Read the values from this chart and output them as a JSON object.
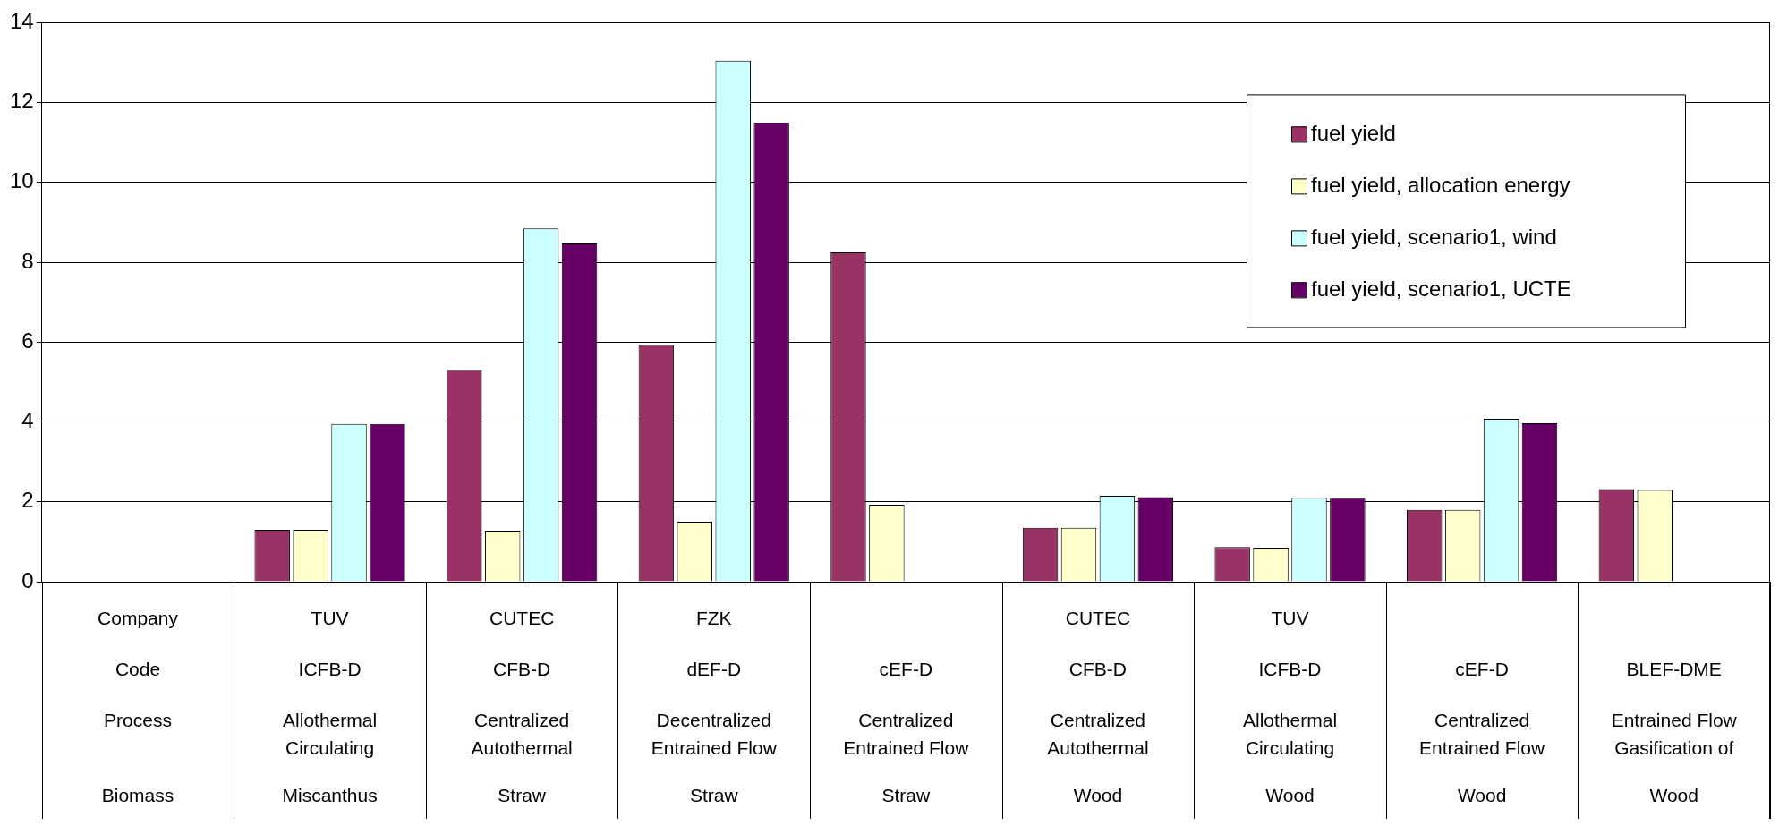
{
  "chart_data": {
    "type": "bar",
    "categories": [
      "Company\nCode\nProcess\n\nBiomass",
      "TUV\nICFB-D\nAllothermal\nCirculating\nMiscanthus",
      "CUTEC\nCFB-D\nCentralized\nAutothermal\nStraw",
      "FZK\ndEF-D\nDecentralized\nEntrained Flow\nStraw",
      "\ncEF-D\nCentralized\nEntrained Flow\nStraw",
      "CUTEC\nCFB-D\nCentralized\nAutothermal\nWood",
      "TUV\nICFB-D\nAllothermal\nCirculating\nWood",
      "\ncEF-D\nCentralized\nEntrained Flow\nWood",
      "\nBLEF-DME\nEntrained Flow\nGasification of\nWood"
    ],
    "series": [
      {
        "name": "fuel yield",
        "color": "#993366",
        "values": [
          null,
          1.3,
          5.3,
          5.93,
          8.25,
          1.35,
          0.87,
          1.8,
          2.32
        ]
      },
      {
        "name": "fuel yield, allocation energy",
        "color": "#ffffcc",
        "values": [
          null,
          1.3,
          1.28,
          1.5,
          1.93,
          1.35,
          0.85,
          1.8,
          2.3
        ]
      },
      {
        "name": "fuel yield, scenario1, wind",
        "color": "#ccffff",
        "values": [
          null,
          3.95,
          8.85,
          13.05,
          null,
          2.15,
          2.1,
          4.08,
          null
        ]
      },
      {
        "name": "fuel yield, scenario1, UCTE",
        "color": "#660066",
        "values": [
          null,
          3.95,
          8.47,
          11.5,
          null,
          2.12,
          2.1,
          3.97,
          null
        ]
      }
    ],
    "ylim": [
      0,
      14
    ],
    "yticks": [
      0,
      2,
      4,
      6,
      8,
      10,
      12,
      14
    ],
    "grid": "y",
    "legend": "top right"
  }
}
